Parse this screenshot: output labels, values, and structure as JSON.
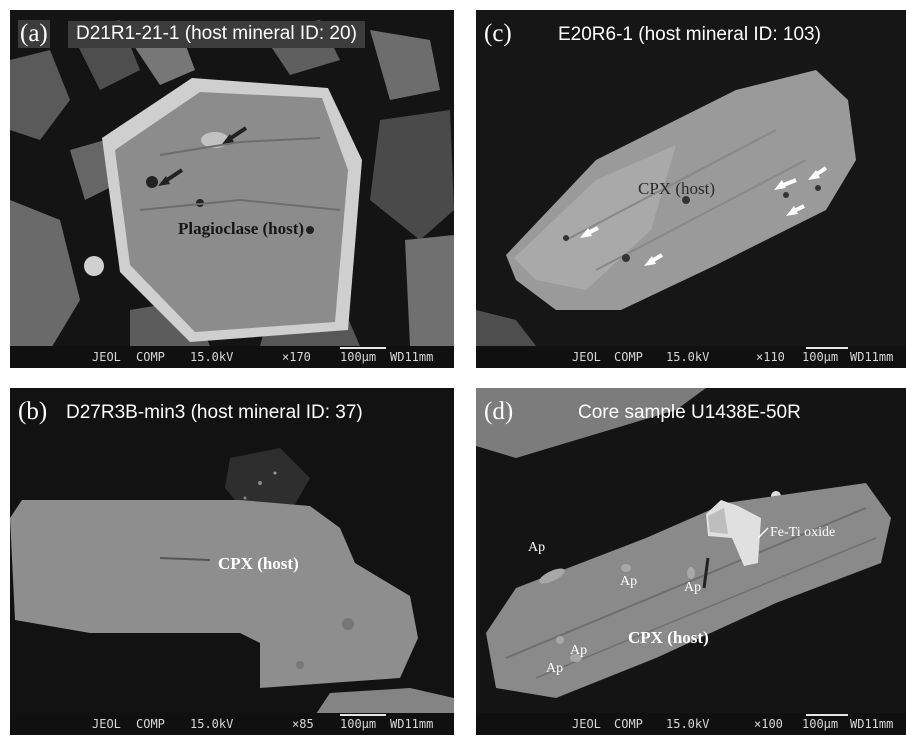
{
  "panels": {
    "a": {
      "letter": "(a)",
      "title": "D21R1-21-1 (host mineral ID: 20)",
      "host_label": "Plagioclase (host)",
      "footer": {
        "instrument": "JEOL",
        "mode": "COMP",
        "voltage": "15.0kV",
        "mag": "×170",
        "scale": "100μm",
        "wd": "WD11mm"
      }
    },
    "c": {
      "letter": "(c)",
      "title": "E20R6-1 (host mineral ID: 103)",
      "host_label": "CPX (host)",
      "footer": {
        "instrument": "JEOL",
        "mode": "COMP",
        "voltage": "15.0kV",
        "mag": "×110",
        "scale": "100μm",
        "wd": "WD11mm"
      }
    },
    "b": {
      "letter": "(b)",
      "title": "D27R3B-min3 (host mineral ID: 37)",
      "host_label": "CPX (host)",
      "footer": {
        "instrument": "JEOL",
        "mode": "COMP",
        "voltage": "15.0kV",
        "mag": "×85",
        "scale": "100μm",
        "wd": "WD11mm"
      }
    },
    "d": {
      "letter": "(d)",
      "title": "Core sample U1438E-50R",
      "host_label": "CPX (host)",
      "oxide_label": "Fe-Ti oxide",
      "ap_label": "Ap",
      "footer": {
        "instrument": "JEOL",
        "mode": "COMP",
        "voltage": "15.0kV",
        "mag": "×100",
        "scale": "100μm",
        "wd": "WD11mm"
      }
    }
  }
}
